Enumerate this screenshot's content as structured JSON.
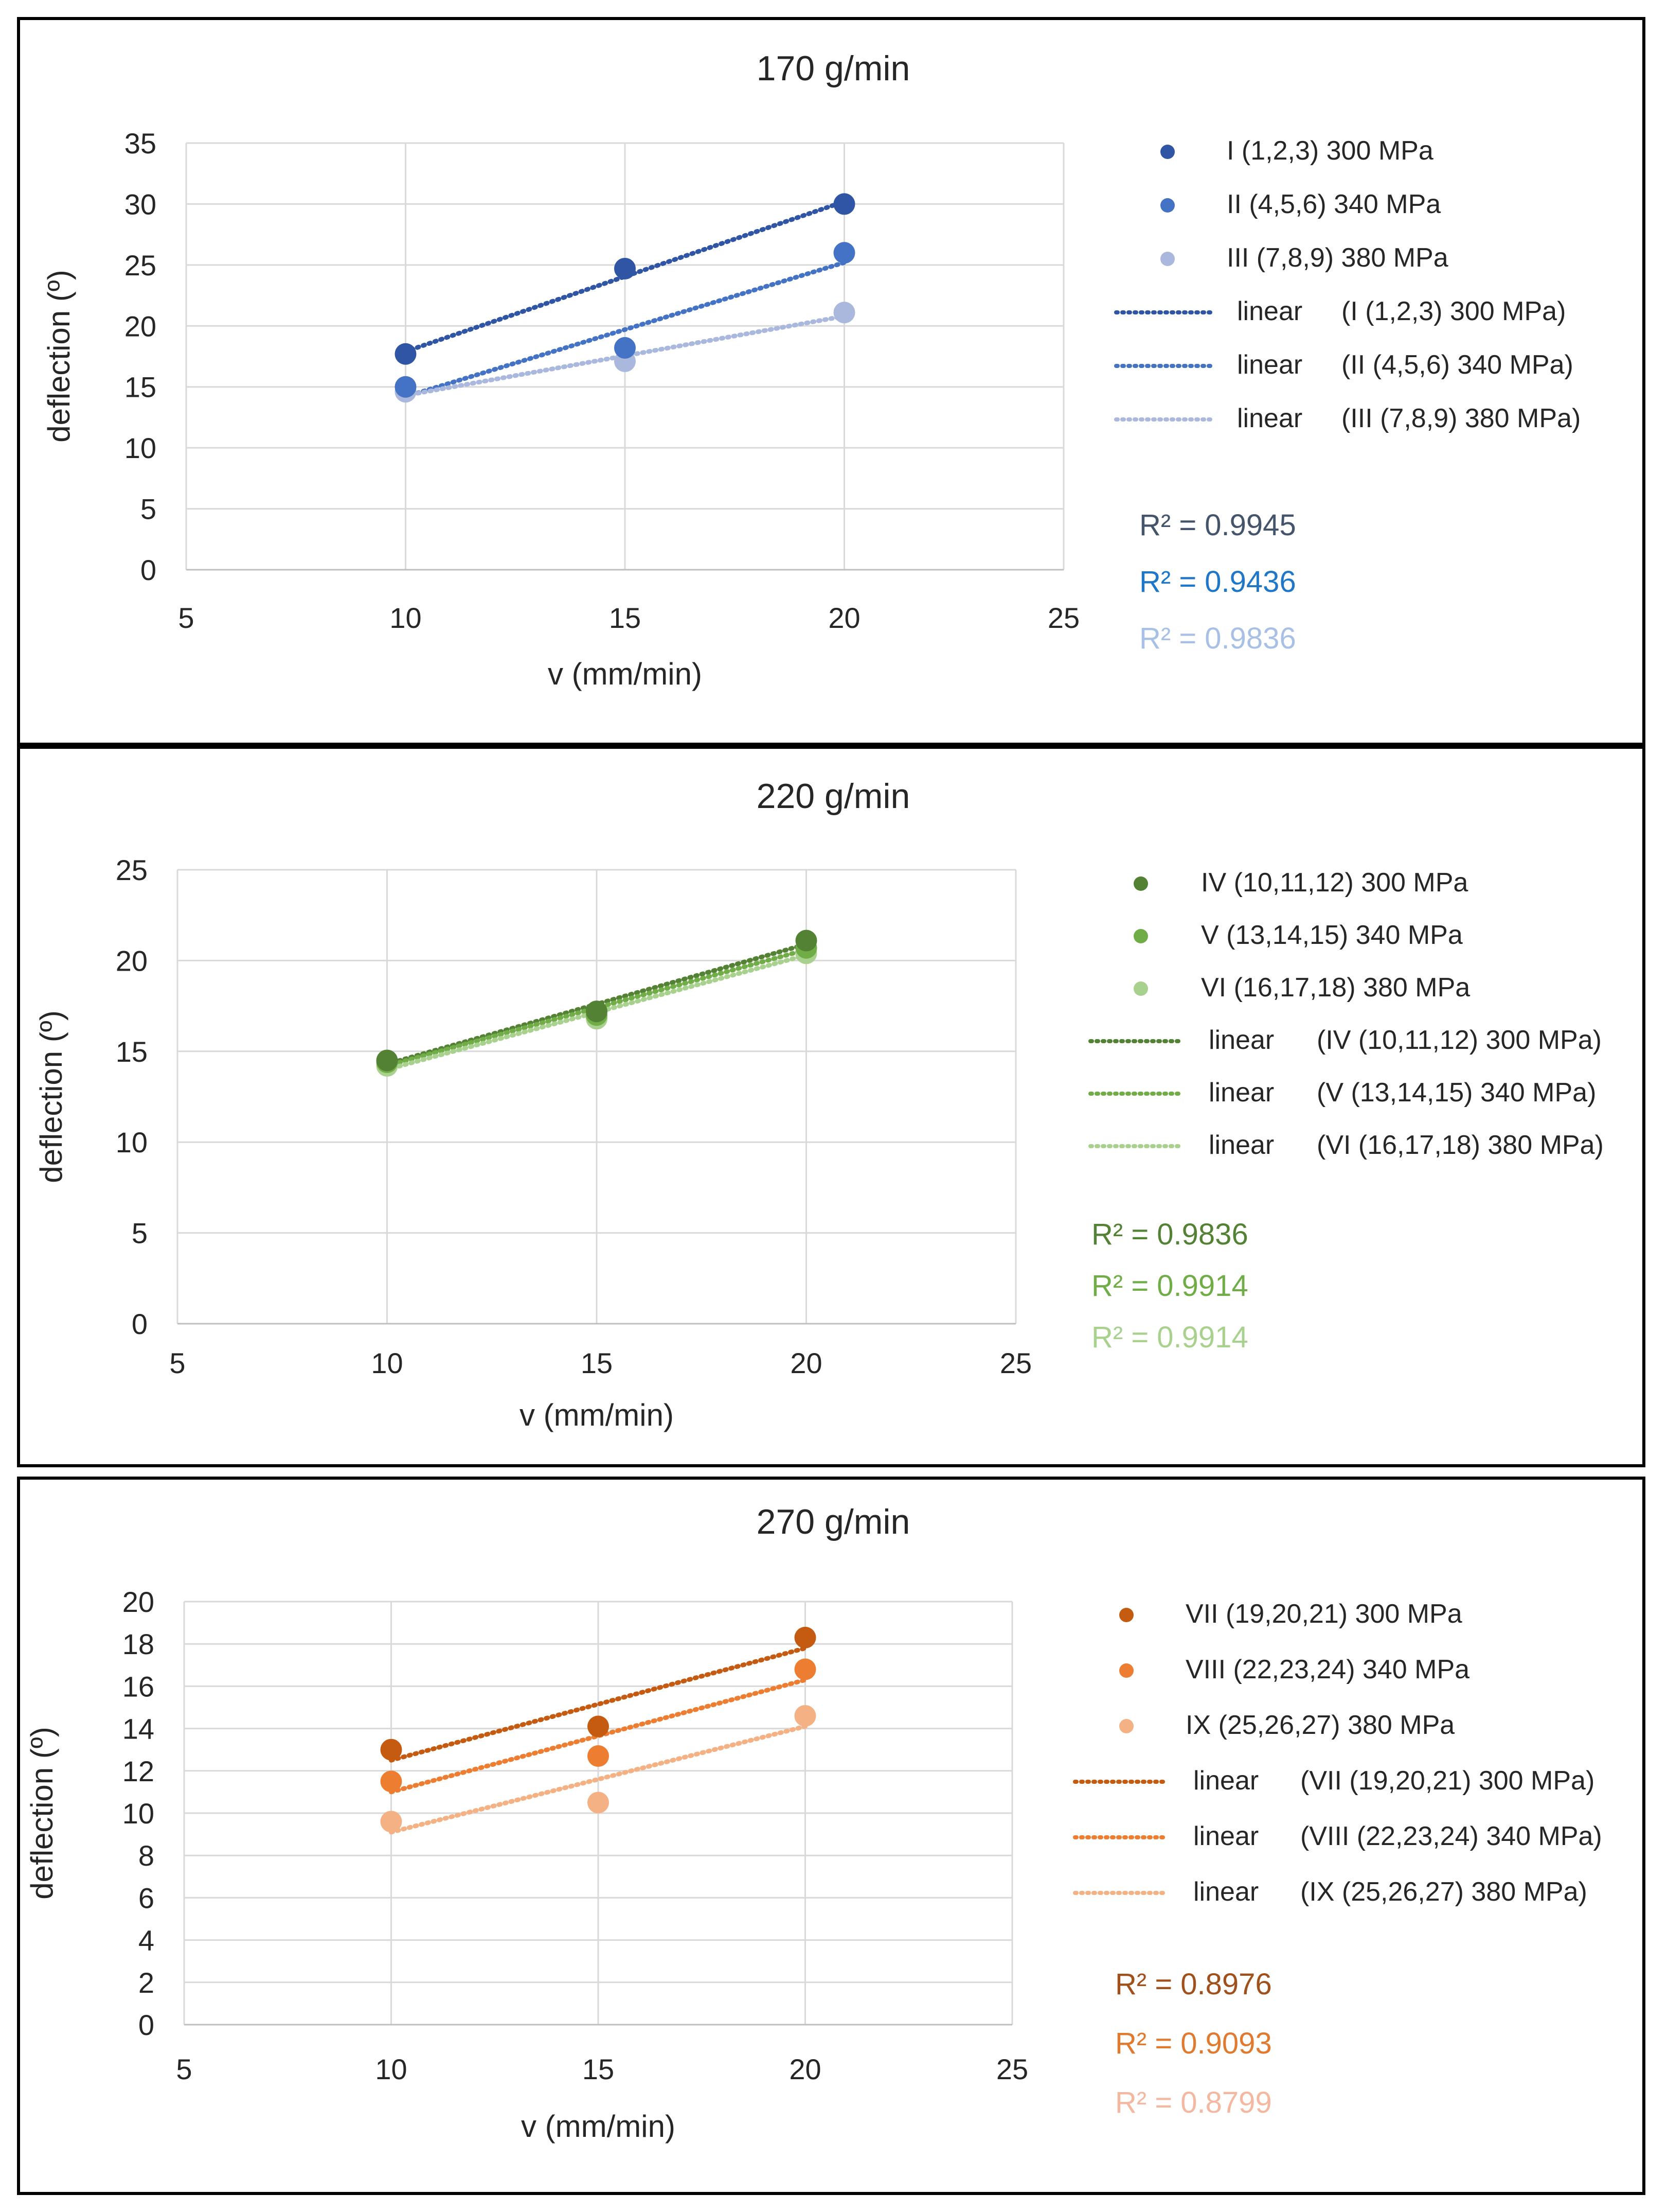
{
  "chart_data": [
    {
      "type": "scatter",
      "title": "170 g/min",
      "xlabel": "v (mm/min)",
      "ylabel": "deflection (º)",
      "xlim": [
        5,
        25
      ],
      "ylim": [
        0,
        35
      ],
      "xticks": [
        5,
        10,
        15,
        20,
        25
      ],
      "yticks": [
        0,
        5,
        10,
        15,
        20,
        25,
        30,
        35
      ],
      "grid": true,
      "series": [
        {
          "name": "I (1,2,3) 300 MPa",
          "color": "#2f55a4",
          "x": [
            10,
            15,
            20
          ],
          "y": [
            17.7,
            24.7,
            30.0
          ],
          "trend_label": "linear",
          "trend_name": "(I (1,2,3) 300 MPa)",
          "trend": [
            17.9,
            30.2
          ],
          "r2": "R² = 0.9945",
          "r2_color": "#44546a"
        },
        {
          "name": "II (4,5,6) 340 MPa",
          "color": "#4472c4",
          "x": [
            10,
            15,
            20
          ],
          "y": [
            15.0,
            18.2,
            26.0
          ],
          "trend_label": "linear",
          "trend_name": "(II (4,5,6) 340 MPa)",
          "trend": [
            14.2,
            25.2
          ],
          "r2": "R² = 0.9436",
          "r2_color": "#1f77c8"
        },
        {
          "name": "III (7,8,9) 380 MPa",
          "color": "#a9b8dc",
          "x": [
            10,
            15,
            20
          ],
          "y": [
            14.6,
            17.1,
            21.1
          ],
          "trend_label": "linear",
          "trend_name": "(III (7,8,9) 380 MPa)",
          "trend": [
            14.3,
            20.8
          ],
          "r2": "R² = 0.9836",
          "r2_color": "#a9c0e6"
        }
      ]
    },
    {
      "type": "scatter",
      "title": "220 g/min",
      "xlabel": "v (mm/min)",
      "ylabel": "deflection (º)",
      "xlim": [
        5,
        25
      ],
      "ylim": [
        0,
        25
      ],
      "xticks": [
        5,
        10,
        15,
        20,
        25
      ],
      "yticks": [
        0,
        5,
        10,
        15,
        20,
        25
      ],
      "grid": true,
      "series": [
        {
          "name": "IV (10,11,12) 300 MPa",
          "color": "#548235",
          "x": [
            10,
            15,
            20
          ],
          "y": [
            14.5,
            17.2,
            21.1
          ],
          "trend_label": "linear",
          "trend_name": "(IV (10,11,12) 300 MPa)",
          "trend": [
            14.3,
            20.9
          ],
          "r2": "R² = 0.9836",
          "r2_color": "#548235"
        },
        {
          "name": "V (13,14,15) 340 MPa",
          "color": "#70ad47",
          "x": [
            10,
            15,
            20
          ],
          "y": [
            14.4,
            17.0,
            20.7
          ],
          "trend_label": "linear",
          "trend_name": "(V (13,14,15) 340 MPa)",
          "trend": [
            14.2,
            20.6
          ],
          "r2": "R² = 0.9914",
          "r2_color": "#70ad47"
        },
        {
          "name": "VI (16,17,18) 380 MPa",
          "color": "#a9d18e",
          "x": [
            10,
            15,
            20
          ],
          "y": [
            14.2,
            16.8,
            20.4
          ],
          "trend_label": "linear",
          "trend_name": "(VI (16,17,18) 380 MPa)",
          "trend": [
            14.0,
            20.3
          ],
          "r2": "R² = 0.9914",
          "r2_color": "#a9d18e"
        }
      ]
    },
    {
      "type": "scatter",
      "title": "270 g/min",
      "xlabel": "v (mm/min)",
      "ylabel": "deflection (º)",
      "xlim": [
        5,
        25
      ],
      "ylim": [
        0,
        20
      ],
      "xticks": [
        5,
        10,
        15,
        20,
        25
      ],
      "yticks": [
        0,
        2,
        4,
        6,
        8,
        10,
        12,
        14,
        16,
        18,
        20
      ],
      "grid": true,
      "series": [
        {
          "name": "VII (19,20,21) 300 MPa",
          "color": "#c55a11",
          "x": [
            10,
            15,
            20
          ],
          "y": [
            13.0,
            14.1,
            18.3
          ],
          "trend_label": "linear",
          "trend_name": "(VII (19,20,21) 300 MPa)",
          "trend": [
            12.5,
            17.8
          ],
          "r2": "R² = 0.8976",
          "r2_color": "#a0501a"
        },
        {
          "name": "VIII (22,23,24) 340 MPa",
          "color": "#ed7d31",
          "x": [
            10,
            15,
            20
          ],
          "y": [
            11.5,
            12.7,
            16.8
          ],
          "trend_label": "linear",
          "trend_name": "(VIII (22,23,24) 340 MPa)",
          "trend": [
            11.0,
            16.3
          ],
          "r2": "R² = 0.9093",
          "r2_color": "#e07a2e"
        },
        {
          "name": "IX (25,26,27) 380 MPa",
          "color": "#f4b183",
          "x": [
            10,
            15,
            20
          ],
          "y": [
            9.6,
            10.5,
            14.6
          ],
          "trend_label": "linear",
          "trend_name": "(IX (25,26,27) 380 MPa)",
          "trend": [
            9.1,
            14.1
          ],
          "r2": "R² = 0.8799",
          "r2_color": "#f4b8a0"
        }
      ]
    }
  ]
}
